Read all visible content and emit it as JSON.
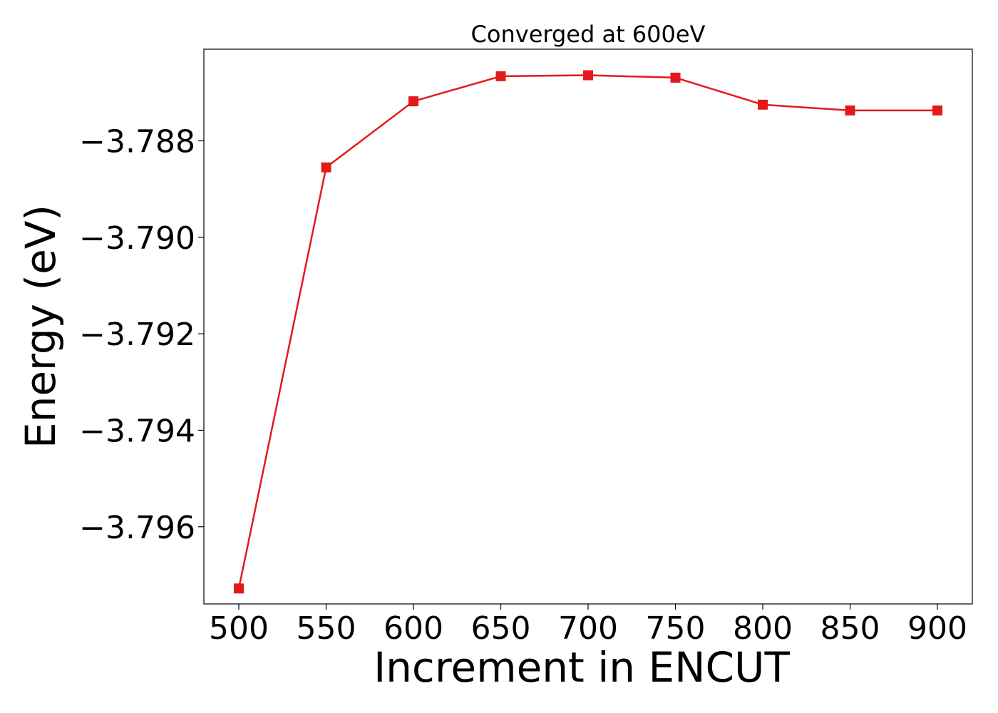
{
  "chart_data": {
    "type": "line",
    "title": "Converged at 600eV",
    "xlabel": "Increment in ENCUT",
    "ylabel": "Energy (eV)",
    "x": [
      500,
      550,
      600,
      650,
      700,
      750,
      800,
      850,
      900
    ],
    "x_ticks": [
      "500",
      "550",
      "600",
      "650",
      "700",
      "750",
      "800",
      "850",
      "900"
    ],
    "y_ticks": [
      -3.796,
      -3.794,
      -3.792,
      -3.79,
      -3.788
    ],
    "y_tick_labels": [
      "−3.796",
      "−3.794",
      "−3.792",
      "−3.790",
      "−3.788"
    ],
    "xlim": [
      480,
      920
    ],
    "ylim": [
      -3.7976,
      -3.7861
    ],
    "series": [
      {
        "values": [
          -3.79728,
          -3.78855,
          -3.78718,
          -3.78666,
          -3.78664,
          -3.78669,
          -3.78725,
          -3.78737,
          -3.78737
        ],
        "color": "#e31a1c",
        "marker": "square"
      }
    ],
    "grid": false,
    "legend": "none"
  }
}
